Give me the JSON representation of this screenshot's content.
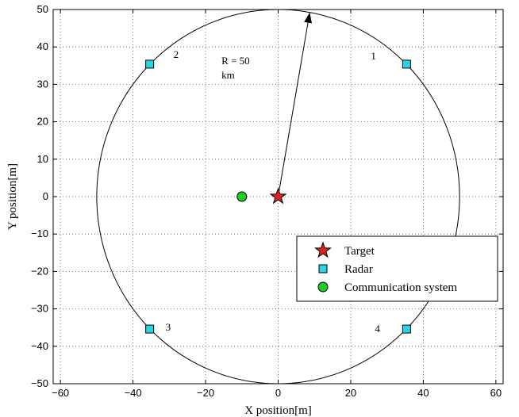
{
  "chart_data": {
    "type": "scatter",
    "xlabel": "X position[m]",
    "ylabel": "Y position[m]",
    "xlim": [
      -62,
      62
    ],
    "ylim": [
      -50,
      50
    ],
    "xticks": [
      -60,
      -40,
      -20,
      0,
      20,
      40,
      60
    ],
    "yticks": [
      -50,
      -40,
      -30,
      -20,
      -10,
      0,
      10,
      20,
      30,
      40,
      50
    ],
    "grid": true,
    "circle": {
      "cx": 0,
      "cy": 0,
      "r": 50
    },
    "arrow": {
      "from": [
        0,
        0
      ],
      "to": [
        8.7,
        49.2
      ]
    },
    "annotation_lines": [
      "R = 50",
      "km"
    ],
    "series": [
      {
        "name": "Target",
        "marker": "star",
        "color": "#e02020",
        "points": [
          [
            0,
            0
          ]
        ]
      },
      {
        "name": "Radar",
        "marker": "square",
        "color": "#29d4e6",
        "points": [
          [
            35.4,
            35.4
          ],
          [
            -35.4,
            35.4
          ],
          [
            -35.4,
            -35.4
          ],
          [
            35.4,
            -35.4
          ]
        ],
        "labels": [
          "1",
          "2",
          "3",
          "4"
        ]
      },
      {
        "name": "Communication system",
        "marker": "circle",
        "color": "#22cc22",
        "points": [
          [
            -10,
            0
          ]
        ]
      }
    ],
    "legend_placement": "lower-right"
  }
}
